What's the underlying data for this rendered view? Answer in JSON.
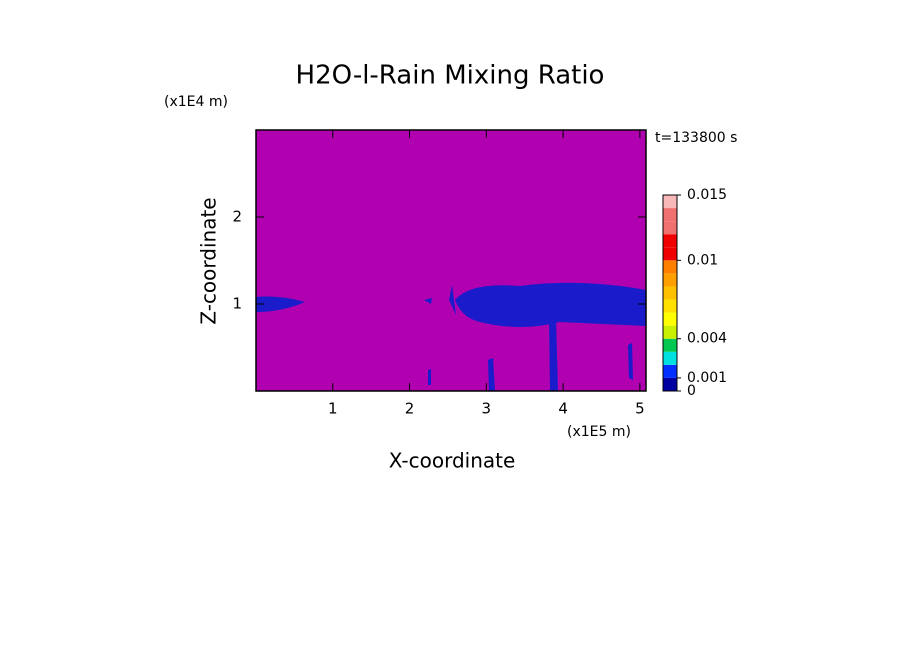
{
  "chart_data": {
    "type": "contour",
    "title": "H2O-l-Rain Mixing Ratio",
    "xlabel": "X-coordinate",
    "ylabel": "Z-coordinate",
    "x_unit": "(x1E5 m)",
    "y_unit": "(x1E4 m)",
    "annotation": "t=133800 s",
    "xlim": [
      0,
      5.08
    ],
    "ylim": [
      0,
      3
    ],
    "xticks": [
      1,
      2,
      3,
      4,
      5
    ],
    "yticks": [
      1,
      2
    ],
    "background_color": "#b000b0",
    "colorbar": {
      "levels": [
        0,
        0.001,
        0.002,
        0.003,
        0.004,
        0.005,
        0.006,
        0.007,
        0.008,
        0.009,
        0.01,
        0.011,
        0.012,
        0.013,
        0.014,
        0.015
      ],
      "colors": [
        "#0000a0",
        "#0030ff",
        "#00e0e0",
        "#00c850",
        "#c8f000",
        "#ffff00",
        "#ffe000",
        "#ffc000",
        "#ffa000",
        "#ff8000",
        "#f00000",
        "#f00000",
        "#f07070",
        "#f07070",
        "#f8b8b8"
      ],
      "ticks": [
        0,
        0.001,
        0.004,
        0.01,
        0.015
      ]
    }
  }
}
